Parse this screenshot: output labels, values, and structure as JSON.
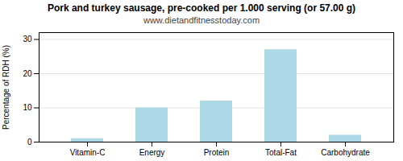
{
  "chart_data": {
    "type": "bar",
    "title": "Pork and turkey sausage, pre-cooked per 1.000 serving (or 57.00 g)",
    "subtitle": "www.dietandfitnesstoday.com",
    "categories": [
      "Vitamin-C",
      "Energy",
      "Protein",
      "Total-Fat",
      "Carbohydrate"
    ],
    "values": [
      1,
      10,
      12,
      27,
      2
    ],
    "color": "#add8e6",
    "ylabel": "Percentage of RDH (%)",
    "ylim": [
      0,
      32
    ],
    "yticks": [
      0,
      10,
      20,
      30
    ],
    "grid": true
  }
}
